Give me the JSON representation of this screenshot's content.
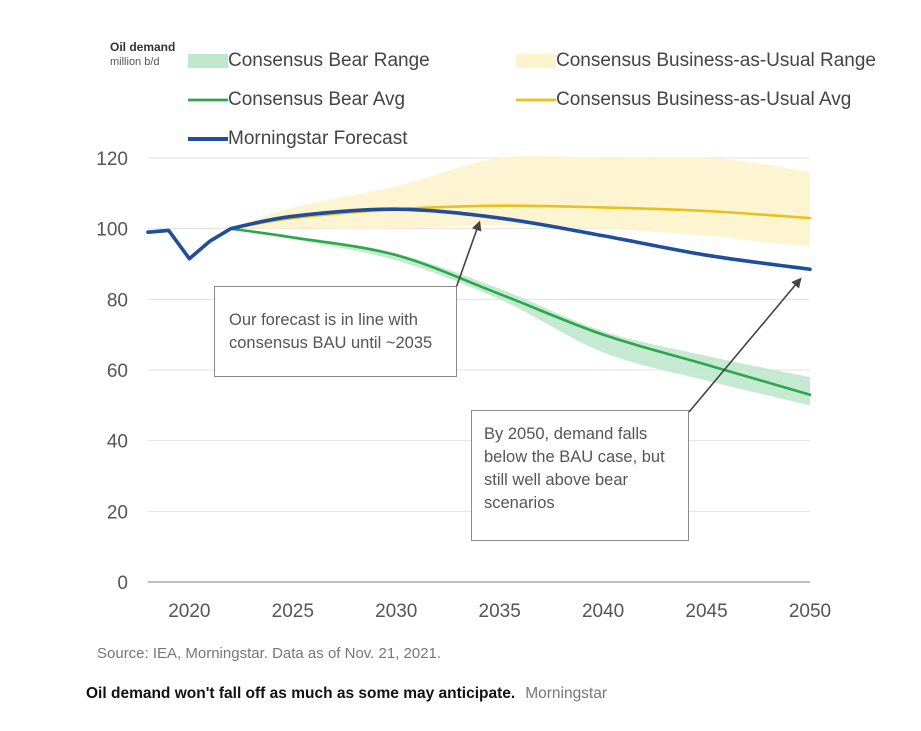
{
  "chart_data": {
    "type": "line",
    "title": "",
    "ylabel": "Oil demand",
    "yunit": "million b/d",
    "xlim": [
      2018,
      2050
    ],
    "ylim": [
      0,
      120
    ],
    "yticks": [
      0,
      20,
      40,
      60,
      80,
      100,
      120
    ],
    "xticks": [
      2020,
      2025,
      2030,
      2035,
      2040,
      2045,
      2050
    ],
    "grid": "horizontal",
    "legend": [
      {
        "name": "Consensus Bear Range",
        "kind": "band",
        "color": "#bfe8cc"
      },
      {
        "name": "Consensus Business-as-Usual Range",
        "kind": "band",
        "color": "#fdf3cc"
      },
      {
        "name": "Consensus Bear Avg",
        "kind": "line",
        "color": "#2ca64a"
      },
      {
        "name": "Consensus Business-as-Usual Avg",
        "kind": "line",
        "color": "#e8c21a"
      },
      {
        "name": "Morningstar Forecast",
        "kind": "line",
        "color": "#1f4e9c"
      }
    ],
    "series": [
      {
        "name": "Consensus Business-as-Usual Range",
        "type": "band",
        "color": "#fdf3cc",
        "x": [
          2022,
          2025,
          2030,
          2035,
          2040,
          2045,
          2048,
          2050
        ],
        "lower": [
          100,
          100,
          100,
          101,
          100,
          98,
          96,
          95
        ],
        "upper": [
          100,
          106,
          112,
          120,
          120,
          120,
          118,
          116
        ]
      },
      {
        "name": "Consensus Bear Range",
        "type": "band",
        "color": "#bfe8cc",
        "x": [
          2022,
          2025,
          2030,
          2035,
          2040,
          2045,
          2050
        ],
        "lower": [
          100,
          97,
          91,
          80,
          65,
          57,
          50
        ],
        "upper": [
          100,
          98,
          93,
          83,
          71,
          64,
          58
        ]
      },
      {
        "name": "Consensus Business-as-Usual Avg",
        "type": "line",
        "color": "#e8c21a",
        "x": [
          2022,
          2025,
          2030,
          2035,
          2040,
          2045,
          2050
        ],
        "values": [
          100,
          103,
          105.5,
          106.5,
          106,
          105,
          103
        ]
      },
      {
        "name": "Consensus Bear Avg",
        "type": "line",
        "color": "#2ca64a",
        "x": [
          2022,
          2025,
          2030,
          2035,
          2040,
          2045,
          2050
        ],
        "values": [
          100,
          97.5,
          92.5,
          81.5,
          70,
          61.5,
          53
        ]
      },
      {
        "name": "Morningstar Forecast",
        "type": "line",
        "color": "#1f4e9c",
        "x": [
          2018,
          2019,
          2020,
          2021,
          2022,
          2025,
          2030,
          2035,
          2040,
          2045,
          2050
        ],
        "values": [
          99,
          99.5,
          91.5,
          96.5,
          100,
          103.5,
          105.5,
          103,
          98,
          92.5,
          88.5
        ]
      }
    ],
    "annotations": [
      {
        "text": "Our forecast is in line with consensus BAU until ~2035",
        "lines": [
          "Our forecast is in line with",
          "consensus BAU until ~2035"
        ],
        "arrow_to": [
          2034,
          101.5
        ]
      },
      {
        "text": "By 2050, demand falls below the BAU case, but still well above bear scenarios",
        "lines": [
          "By 2050, demand falls",
          "below the BAU case, but",
          "still well above bear",
          "scenarios"
        ],
        "arrow_to": [
          2049.5,
          85.5
        ]
      }
    ]
  },
  "legend_labels": {
    "bear_range": "Consensus Bear Range",
    "bau_range": "Consensus Business-as-Usual Range",
    "bear_avg": "Consensus Bear Avg",
    "bau_avg": "Consensus Business-as-Usual Avg",
    "morningstar": "Morningstar Forecast"
  },
  "y_axis": {
    "title": "Oil demand",
    "unit": "million b/d"
  },
  "callouts": {
    "first": {
      "line1": "Our forecast is in line with",
      "line2": "consensus BAU until ~2035"
    },
    "second": {
      "line1": "By 2050, demand falls",
      "line2": "below the BAU case, but",
      "line3": "still well above bear",
      "line4": "scenarios"
    }
  },
  "source": "Source: IEA, Morningstar. Data as of Nov. 21, 2021.",
  "caption": {
    "text": "Oil demand won't fall off as much as some may anticipate.",
    "credit": "Morningstar"
  }
}
